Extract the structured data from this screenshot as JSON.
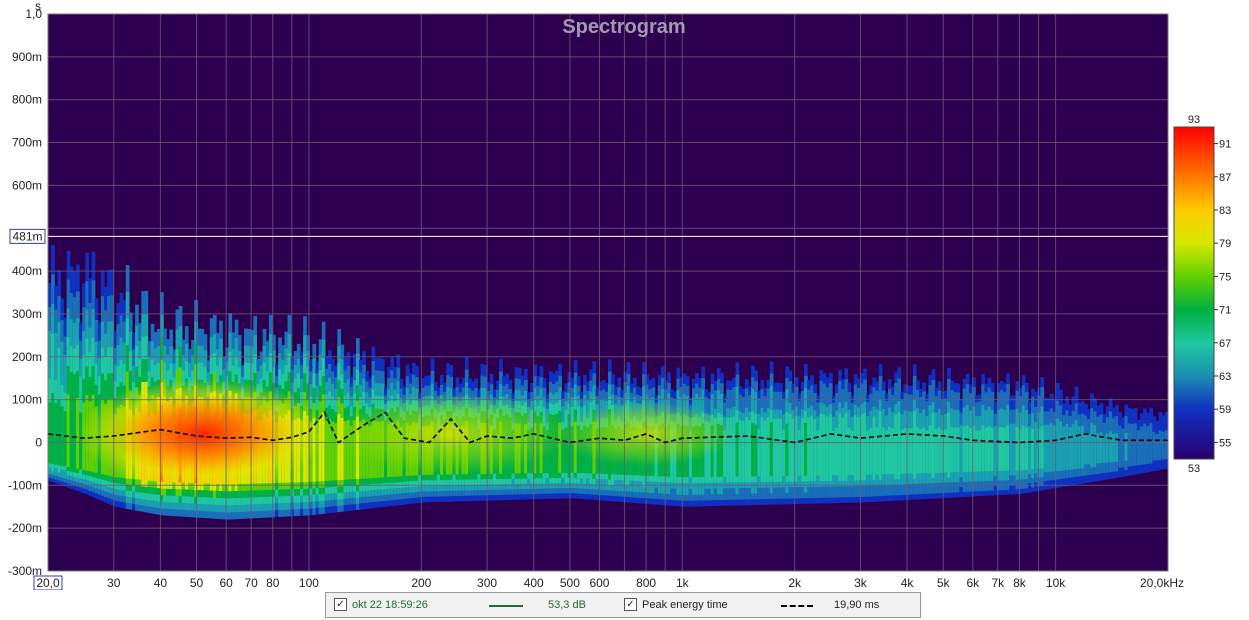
{
  "colors": {
    "background": "#2d004f",
    "grid": "#6a5a78",
    "title": "#a29aae",
    "cursor_line": "#ffffff",
    "peak_line": "#000000",
    "trace_line": "#1f6b3a"
  },
  "chart_data": {
    "type": "heatmap",
    "title": "Spectrogram",
    "y_unit": "s",
    "x_unit": "Hz",
    "x_scale": "log",
    "xlim": [
      20,
      20000
    ],
    "ylim": [
      -0.3,
      1.0
    ],
    "x_tick_labels": [
      {
        "v": 20,
        "label": "20,0"
      },
      {
        "v": 30,
        "label": "30"
      },
      {
        "v": 40,
        "label": "40"
      },
      {
        "v": 50,
        "label": "50"
      },
      {
        "v": 60,
        "label": "60"
      },
      {
        "v": 70,
        "label": "70"
      },
      {
        "v": 80,
        "label": "80"
      },
      {
        "v": 100,
        "label": "100"
      },
      {
        "v": 200,
        "label": "200"
      },
      {
        "v": 300,
        "label": "300"
      },
      {
        "v": 400,
        "label": "400"
      },
      {
        "v": 500,
        "label": "500"
      },
      {
        "v": 600,
        "label": "600"
      },
      {
        "v": 800,
        "label": "800"
      },
      {
        "v": 1000,
        "label": "1k"
      },
      {
        "v": 2000,
        "label": "2k"
      },
      {
        "v": 3000,
        "label": "3k"
      },
      {
        "v": 4000,
        "label": "4k"
      },
      {
        "v": 5000,
        "label": "5k"
      },
      {
        "v": 6000,
        "label": "6k"
      },
      {
        "v": 7000,
        "label": "7k"
      },
      {
        "v": 8000,
        "label": "8k"
      },
      {
        "v": 10000,
        "label": "10k"
      },
      {
        "v": 20000,
        "label": "20,0kHz"
      }
    ],
    "y_tick_labels": [
      {
        "v": 1.0,
        "label": "1,0"
      },
      {
        "v": 0.9,
        "label": "900m"
      },
      {
        "v": 0.8,
        "label": "800m"
      },
      {
        "v": 0.7,
        "label": "700m"
      },
      {
        "v": 0.6,
        "label": "600m"
      },
      {
        "v": 0.4,
        "label": "400m"
      },
      {
        "v": 0.3,
        "label": "300m"
      },
      {
        "v": 0.2,
        "label": "200m"
      },
      {
        "v": 0.1,
        "label": "100m"
      },
      {
        "v": 0,
        "label": "0"
      },
      {
        "v": -0.1,
        "label": "-100m"
      },
      {
        "v": -0.2,
        "label": "-200m"
      },
      {
        "v": -0.3,
        "label": "-300m"
      }
    ],
    "cursor": {
      "v": 0.481,
      "label": "481m"
    },
    "colorbar": {
      "min": 53,
      "max": 93,
      "min_label": "53",
      "max_label": "93",
      "ticks": [
        {
          "v": 91,
          "label": "91"
        },
        {
          "v": 87,
          "label": "87"
        },
        {
          "v": 83,
          "label": "83"
        },
        {
          "v": 79,
          "label": "79"
        },
        {
          "v": 75,
          "label": "75"
        },
        {
          "v": 71,
          "label": "71"
        },
        {
          "v": 67,
          "label": "67"
        },
        {
          "v": 63,
          "label": "63"
        },
        {
          "v": 59,
          "label": "59"
        },
        {
          "v": 55,
          "label": "55"
        }
      ]
    },
    "energy_envelope": [
      {
        "f": 20,
        "top": 0.48,
        "bottom": -0.09,
        "peak": 76
      },
      {
        "f": 25,
        "top": 0.5,
        "bottom": -0.12,
        "peak": 80
      },
      {
        "f": 30,
        "top": 0.45,
        "bottom": -0.15,
        "peak": 82
      },
      {
        "f": 40,
        "top": 0.35,
        "bottom": -0.17,
        "peak": 91
      },
      {
        "f": 60,
        "top": 0.33,
        "bottom": -0.18,
        "peak": 88
      },
      {
        "f": 100,
        "top": 0.3,
        "bottom": -0.17,
        "peak": 84
      },
      {
        "f": 200,
        "top": 0.2,
        "bottom": -0.14,
        "peak": 80
      },
      {
        "f": 500,
        "top": 0.2,
        "bottom": -0.13,
        "peak": 78
      },
      {
        "f": 1000,
        "top": 0.19,
        "bottom": -0.15,
        "peak": 75
      },
      {
        "f": 3000,
        "top": 0.19,
        "bottom": -0.14,
        "peak": 73
      },
      {
        "f": 8000,
        "top": 0.17,
        "bottom": -0.12,
        "peak": 71
      },
      {
        "f": 15000,
        "top": 0.1,
        "bottom": -0.08,
        "peak": 66
      },
      {
        "f": 20000,
        "top": 0.08,
        "bottom": -0.06,
        "peak": 62
      }
    ],
    "series": [
      {
        "name": "Peak energy time",
        "style": "dashed",
        "points": [
          [
            20,
            0.02
          ],
          [
            25,
            0.01
          ],
          [
            30,
            0.015
          ],
          [
            40,
            0.03
          ],
          [
            50,
            0.015
          ],
          [
            60,
            0.01
          ],
          [
            70,
            0.012
          ],
          [
            80,
            0.005
          ],
          [
            90,
            0.012
          ],
          [
            100,
            0.025
          ],
          [
            110,
            0.07
          ],
          [
            120,
            0.0
          ],
          [
            140,
            0.04
          ],
          [
            160,
            0.07
          ],
          [
            180,
            0.01
          ],
          [
            210,
            0.0
          ],
          [
            240,
            0.055
          ],
          [
            270,
            0.0
          ],
          [
            300,
            0.015
          ],
          [
            350,
            0.01
          ],
          [
            400,
            0.02
          ],
          [
            500,
            0.0
          ],
          [
            600,
            0.01
          ],
          [
            700,
            0.005
          ],
          [
            800,
            0.02
          ],
          [
            900,
            0.0
          ],
          [
            1000,
            0.01
          ],
          [
            1500,
            0.015
          ],
          [
            2000,
            0.0
          ],
          [
            2500,
            0.02
          ],
          [
            3000,
            0.01
          ],
          [
            4000,
            0.02
          ],
          [
            5000,
            0.015
          ],
          [
            6000,
            0.005
          ],
          [
            8000,
            0.0
          ],
          [
            10000,
            0.005
          ],
          [
            12000,
            0.02
          ],
          [
            15000,
            0.005
          ],
          [
            20000,
            0.005
          ]
        ]
      }
    ]
  },
  "legend": {
    "trace_label": "okt 22 18:59:26",
    "trace_value": "53,3 dB",
    "peak_label": "Peak energy time",
    "peak_value": "19,90 ms",
    "check_glyph": "✓"
  }
}
